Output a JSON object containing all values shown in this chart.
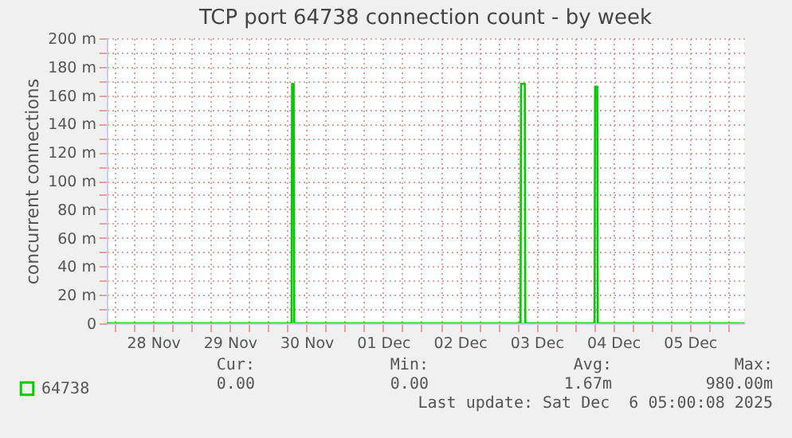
{
  "chart_data": {
    "type": "line",
    "title": "TCP port 64738 connection count - by week",
    "ylabel": "concurrent connections",
    "xlim": [
      "2025-11-27T21:30",
      "2025-12-06T05:00"
    ],
    "xticks": [
      {
        "value": "2025-11-28T00:00",
        "label": null
      },
      {
        "value": "2025-11-28T06:00",
        "label": null
      },
      {
        "value": "2025-11-28T12:00",
        "label": "28 Nov"
      },
      {
        "value": "2025-11-28T18:00",
        "label": null
      },
      {
        "value": "2025-11-29T00:00",
        "label": null
      },
      {
        "value": "2025-11-29T06:00",
        "label": null
      },
      {
        "value": "2025-11-29T12:00",
        "label": "29 Nov"
      },
      {
        "value": "2025-11-29T18:00",
        "label": null
      },
      {
        "value": "2025-11-30T00:00",
        "label": null
      },
      {
        "value": "2025-11-30T06:00",
        "label": null
      },
      {
        "value": "2025-11-30T12:00",
        "label": "30 Nov"
      },
      {
        "value": "2025-11-30T18:00",
        "label": null
      },
      {
        "value": "2025-12-01T00:00",
        "label": null
      },
      {
        "value": "2025-12-01T06:00",
        "label": null
      },
      {
        "value": "2025-12-01T12:00",
        "label": "01 Dec"
      },
      {
        "value": "2025-12-01T18:00",
        "label": null
      },
      {
        "value": "2025-12-02T00:00",
        "label": null
      },
      {
        "value": "2025-12-02T06:00",
        "label": null
      },
      {
        "value": "2025-12-02T12:00",
        "label": "02 Dec"
      },
      {
        "value": "2025-12-02T18:00",
        "label": null
      },
      {
        "value": "2025-12-03T00:00",
        "label": null
      },
      {
        "value": "2025-12-03T06:00",
        "label": null
      },
      {
        "value": "2025-12-03T12:00",
        "label": "03 Dec"
      },
      {
        "value": "2025-12-03T18:00",
        "label": null
      },
      {
        "value": "2025-12-04T00:00",
        "label": null
      },
      {
        "value": "2025-12-04T06:00",
        "label": null
      },
      {
        "value": "2025-12-04T12:00",
        "label": "04 Dec"
      },
      {
        "value": "2025-12-04T18:00",
        "label": null
      },
      {
        "value": "2025-12-05T00:00",
        "label": null
      },
      {
        "value": "2025-12-05T06:00",
        "label": null
      },
      {
        "value": "2025-12-05T12:00",
        "label": "05 Dec"
      },
      {
        "value": "2025-12-05T18:00",
        "label": null
      },
      {
        "value": "2025-12-06T00:00",
        "label": null
      }
    ],
    "ylim": [
      0,
      200
    ],
    "yticks": [
      {
        "value": 0,
        "label": "0"
      },
      {
        "value": 10,
        "label": null
      },
      {
        "value": 20,
        "label": "20 m"
      },
      {
        "value": 30,
        "label": null
      },
      {
        "value": 40,
        "label": "40 m"
      },
      {
        "value": 50,
        "label": null
      },
      {
        "value": 60,
        "label": "60 m"
      },
      {
        "value": 70,
        "label": null
      },
      {
        "value": 80,
        "label": "80 m"
      },
      {
        "value": 90,
        "label": null
      },
      {
        "value": 100,
        "label": "100 m"
      },
      {
        "value": 110,
        "label": null
      },
      {
        "value": 120,
        "label": "120 m"
      },
      {
        "value": 130,
        "label": null
      },
      {
        "value": 140,
        "label": "140 m"
      },
      {
        "value": 150,
        "label": null
      },
      {
        "value": 160,
        "label": "160 m"
      },
      {
        "value": 170,
        "label": null
      },
      {
        "value": 180,
        "label": "180 m"
      },
      {
        "value": 190,
        "label": null
      },
      {
        "value": 200,
        "label": "200 m"
      }
    ],
    "x": [
      "2025-11-27T21:30",
      "2025-11-30T07:20",
      "2025-11-30T07:30",
      "2025-11-30T08:00",
      "2025-11-30T08:10",
      "2025-12-03T07:00",
      "2025-12-03T07:10",
      "2025-12-03T08:20",
      "2025-12-03T08:30",
      "2025-12-04T06:10",
      "2025-12-04T06:20",
      "2025-12-04T07:00",
      "2025-12-04T07:10",
      "2025-12-06T05:00"
    ],
    "series": [
      {
        "name": "64738",
        "color": "#00cc00",
        "values": [
          0,
          0,
          168,
          168,
          0,
          0,
          168,
          168,
          0,
          0,
          166,
          166,
          0,
          0
        ]
      }
    ],
    "grid": true,
    "legend": "bottom",
    "annotations": [
      "Cur:",
      "Min:",
      "Avg:",
      "Max:",
      "0.00",
      "0.00",
      "1.67m",
      "980.00m",
      "Last update: Sat Dec  6 05:00:08 2025"
    ]
  }
}
